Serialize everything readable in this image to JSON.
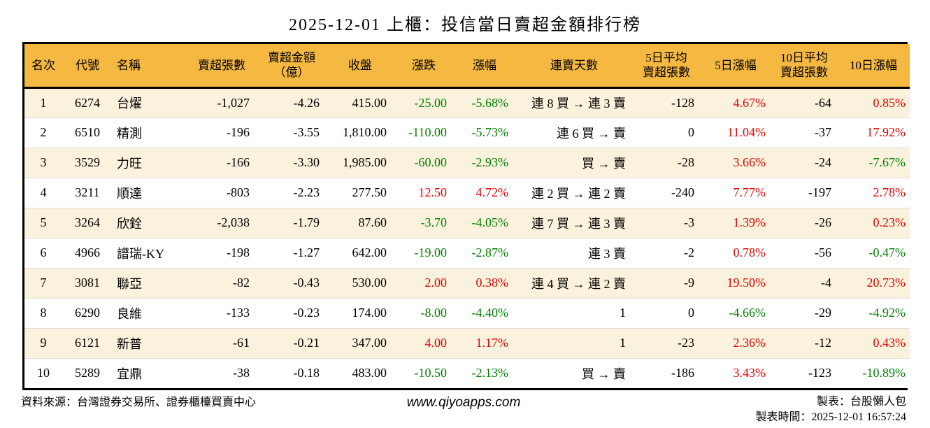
{
  "title": "2025-12-01 上櫃：投信當日賣超金額排行榜",
  "colors": {
    "positive_red": "#e60000",
    "negative_green": "#008000",
    "header_bg": "#f5b841",
    "row_alt_bg": "#fbf2dd",
    "row_bg": "#ffffff",
    "border": "#000000"
  },
  "chart_data": {
    "type": "table",
    "title": "2025-12-01 上櫃：投信當日賣超金額排行榜",
    "columns": [
      {
        "key": "rank",
        "label": "名次"
      },
      {
        "key": "code",
        "label": "代號"
      },
      {
        "key": "name",
        "label": "名稱"
      },
      {
        "key": "sell_volume",
        "label": "賣超張數"
      },
      {
        "key": "sell_amount",
        "label": "賣超金額\n（億）"
      },
      {
        "key": "close",
        "label": "收盤"
      },
      {
        "key": "change",
        "label": "漲跌"
      },
      {
        "key": "change_pct",
        "label": "漲幅"
      },
      {
        "key": "streak",
        "label": "連賣天數"
      },
      {
        "key": "avg5",
        "label": "5日平均\n賣超張數"
      },
      {
        "key": "pct5",
        "label": "5日漲幅"
      },
      {
        "key": "avg10",
        "label": "10日平均\n賣超張數"
      },
      {
        "key": "pct10",
        "label": "10日漲幅"
      }
    ],
    "rows": [
      {
        "cells": [
          {
            "v": "1",
            "c": ""
          },
          {
            "v": "6274",
            "c": ""
          },
          {
            "v": "台燿",
            "c": ""
          },
          {
            "v": "-1,027",
            "c": ""
          },
          {
            "v": "-4.26",
            "c": ""
          },
          {
            "v": "415.00",
            "c": ""
          },
          {
            "v": "-25.00",
            "c": "down"
          },
          {
            "v": "-5.68%",
            "c": "down"
          },
          {
            "v": "連 8 買 → 連 3 賣",
            "c": ""
          },
          {
            "v": "-128",
            "c": ""
          },
          {
            "v": "4.67%",
            "c": "up"
          },
          {
            "v": "-64",
            "c": ""
          },
          {
            "v": "0.85%",
            "c": "up"
          }
        ]
      },
      {
        "cells": [
          {
            "v": "2",
            "c": ""
          },
          {
            "v": "6510",
            "c": ""
          },
          {
            "v": "精測",
            "c": ""
          },
          {
            "v": "-196",
            "c": ""
          },
          {
            "v": "-3.55",
            "c": ""
          },
          {
            "v": "1,810.00",
            "c": ""
          },
          {
            "v": "-110.00",
            "c": "down"
          },
          {
            "v": "-5.73%",
            "c": "down"
          },
          {
            "v": "連 6 買 → 賣",
            "c": ""
          },
          {
            "v": "0",
            "c": ""
          },
          {
            "v": "11.04%",
            "c": "up"
          },
          {
            "v": "-37",
            "c": ""
          },
          {
            "v": "17.92%",
            "c": "up"
          }
        ]
      },
      {
        "cells": [
          {
            "v": "3",
            "c": ""
          },
          {
            "v": "3529",
            "c": ""
          },
          {
            "v": "力旺",
            "c": ""
          },
          {
            "v": "-166",
            "c": ""
          },
          {
            "v": "-3.30",
            "c": ""
          },
          {
            "v": "1,985.00",
            "c": ""
          },
          {
            "v": "-60.00",
            "c": "down"
          },
          {
            "v": "-2.93%",
            "c": "down"
          },
          {
            "v": "買 → 賣",
            "c": ""
          },
          {
            "v": "-28",
            "c": ""
          },
          {
            "v": "3.66%",
            "c": "up"
          },
          {
            "v": "-24",
            "c": ""
          },
          {
            "v": "-7.67%",
            "c": "down"
          }
        ]
      },
      {
        "cells": [
          {
            "v": "4",
            "c": ""
          },
          {
            "v": "3211",
            "c": ""
          },
          {
            "v": "順達",
            "c": ""
          },
          {
            "v": "-803",
            "c": ""
          },
          {
            "v": "-2.23",
            "c": ""
          },
          {
            "v": "277.50",
            "c": ""
          },
          {
            "v": "12.50",
            "c": "up"
          },
          {
            "v": "4.72%",
            "c": "up"
          },
          {
            "v": "連 2 買 → 連 2 賣",
            "c": ""
          },
          {
            "v": "-240",
            "c": ""
          },
          {
            "v": "7.77%",
            "c": "up"
          },
          {
            "v": "-197",
            "c": ""
          },
          {
            "v": "2.78%",
            "c": "up"
          }
        ]
      },
      {
        "cells": [
          {
            "v": "5",
            "c": ""
          },
          {
            "v": "3264",
            "c": ""
          },
          {
            "v": "欣銓",
            "c": ""
          },
          {
            "v": "-2,038",
            "c": ""
          },
          {
            "v": "-1.79",
            "c": ""
          },
          {
            "v": "87.60",
            "c": ""
          },
          {
            "v": "-3.70",
            "c": "down"
          },
          {
            "v": "-4.05%",
            "c": "down"
          },
          {
            "v": "連 7 買 → 連 3 賣",
            "c": ""
          },
          {
            "v": "-3",
            "c": ""
          },
          {
            "v": "1.39%",
            "c": "up"
          },
          {
            "v": "-26",
            "c": ""
          },
          {
            "v": "0.23%",
            "c": "up"
          }
        ]
      },
      {
        "cells": [
          {
            "v": "6",
            "c": ""
          },
          {
            "v": "4966",
            "c": ""
          },
          {
            "v": "譜瑞-KY",
            "c": ""
          },
          {
            "v": "-198",
            "c": ""
          },
          {
            "v": "-1.27",
            "c": ""
          },
          {
            "v": "642.00",
            "c": ""
          },
          {
            "v": "-19.00",
            "c": "down"
          },
          {
            "v": "-2.87%",
            "c": "down"
          },
          {
            "v": "連 3 賣",
            "c": ""
          },
          {
            "v": "-2",
            "c": ""
          },
          {
            "v": "0.78%",
            "c": "up"
          },
          {
            "v": "-56",
            "c": ""
          },
          {
            "v": "-0.47%",
            "c": "down"
          }
        ]
      },
      {
        "cells": [
          {
            "v": "7",
            "c": ""
          },
          {
            "v": "3081",
            "c": ""
          },
          {
            "v": "聯亞",
            "c": ""
          },
          {
            "v": "-82",
            "c": ""
          },
          {
            "v": "-0.43",
            "c": ""
          },
          {
            "v": "530.00",
            "c": ""
          },
          {
            "v": "2.00",
            "c": "up"
          },
          {
            "v": "0.38%",
            "c": "up"
          },
          {
            "v": "連 4 買 → 連 2 賣",
            "c": ""
          },
          {
            "v": "-9",
            "c": ""
          },
          {
            "v": "19.50%",
            "c": "up"
          },
          {
            "v": "-4",
            "c": ""
          },
          {
            "v": "20.73%",
            "c": "up"
          }
        ]
      },
      {
        "cells": [
          {
            "v": "8",
            "c": ""
          },
          {
            "v": "6290",
            "c": ""
          },
          {
            "v": "良維",
            "c": ""
          },
          {
            "v": "-133",
            "c": ""
          },
          {
            "v": "-0.23",
            "c": ""
          },
          {
            "v": "174.00",
            "c": ""
          },
          {
            "v": "-8.00",
            "c": "down"
          },
          {
            "v": "-4.40%",
            "c": "down"
          },
          {
            "v": "1",
            "c": ""
          },
          {
            "v": "0",
            "c": ""
          },
          {
            "v": "-4.66%",
            "c": "down"
          },
          {
            "v": "-29",
            "c": ""
          },
          {
            "v": "-4.92%",
            "c": "down"
          }
        ]
      },
      {
        "cells": [
          {
            "v": "9",
            "c": ""
          },
          {
            "v": "6121",
            "c": ""
          },
          {
            "v": "新普",
            "c": ""
          },
          {
            "v": "-61",
            "c": ""
          },
          {
            "v": "-0.21",
            "c": ""
          },
          {
            "v": "347.00",
            "c": ""
          },
          {
            "v": "4.00",
            "c": "up"
          },
          {
            "v": "1.17%",
            "c": "up"
          },
          {
            "v": "1",
            "c": ""
          },
          {
            "v": "-23",
            "c": ""
          },
          {
            "v": "2.36%",
            "c": "up"
          },
          {
            "v": "-12",
            "c": ""
          },
          {
            "v": "0.43%",
            "c": "up"
          }
        ]
      },
      {
        "cells": [
          {
            "v": "10",
            "c": ""
          },
          {
            "v": "5289",
            "c": ""
          },
          {
            "v": "宜鼎",
            "c": ""
          },
          {
            "v": "-38",
            "c": ""
          },
          {
            "v": "-0.18",
            "c": ""
          },
          {
            "v": "483.00",
            "c": ""
          },
          {
            "v": "-10.50",
            "c": "down"
          },
          {
            "v": "-2.13%",
            "c": "down"
          },
          {
            "v": "買 → 賣",
            "c": ""
          },
          {
            "v": "-186",
            "c": ""
          },
          {
            "v": "3.43%",
            "c": "up"
          },
          {
            "v": "-123",
            "c": ""
          },
          {
            "v": "-10.89%",
            "c": "down"
          }
        ]
      }
    ]
  },
  "footer": {
    "source": "資料來源：台灣證券交易所、證券櫃檯買賣中心",
    "website": "www.qiyoapps.com",
    "author": "製表：台股懶人包",
    "generated": "製表時間：2025-12-01 16:57:24"
  }
}
